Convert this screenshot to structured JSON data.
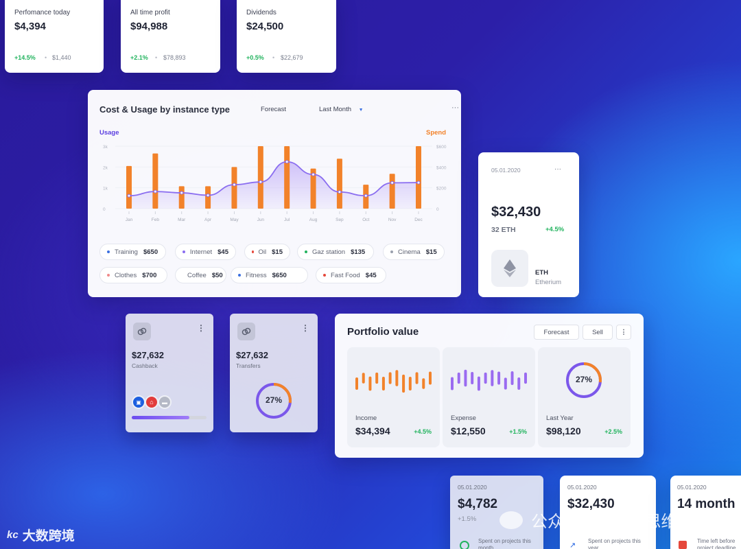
{
  "stats": [
    {
      "title": "Perfomance today",
      "value": "$4,394",
      "change": "+14.5%",
      "amount": "$1,440"
    },
    {
      "title": "All time profit",
      "value": "$94,988",
      "change": "+2.1%",
      "amount": "$78,893"
    },
    {
      "title": "Dividends",
      "value": "$24,500",
      "change": "+0.5%",
      "amount": "$22,679"
    }
  ],
  "cost_card": {
    "title": "Cost & Usage by instance type",
    "forecast": "Forecast",
    "period": "Last Month",
    "more": "···",
    "left_label": "Usage",
    "right_label": "Spend"
  },
  "chart_data": {
    "type": "bar",
    "categories": [
      "Jan",
      "Feb",
      "Mar",
      "Apr",
      "May",
      "Jun",
      "Jul",
      "Aug",
      "Sep",
      "Oct",
      "Nov",
      "Dec"
    ],
    "left_ticks": [
      "3k",
      "2k",
      "1k",
      "0"
    ],
    "right_ticks": [
      "$600",
      "$400",
      "$200",
      "0"
    ],
    "series": [
      {
        "axis": "right",
        "type": "bar",
        "values": [
          410,
          530,
          215,
          215,
          400,
          600,
          600,
          385,
          480,
          230,
          335,
          600
        ]
      },
      {
        "axis": "left",
        "type": "area",
        "values": [
          620,
          820,
          760,
          640,
          1150,
          1280,
          2250,
          1640,
          800,
          620,
          1240,
          1250
        ]
      }
    ],
    "ylim_left": [
      0,
      3000
    ],
    "ylim_right": [
      0,
      600
    ],
    "colors": {
      "bar": "#f2822a",
      "line": "#8a6df0",
      "area": "#cbbcf8"
    }
  },
  "categories_legend": [
    {
      "name": "Training",
      "amount": "$650",
      "color": "#3b6fe0"
    },
    {
      "name": "Internet",
      "amount": "$45",
      "color": "#8a6df0"
    },
    {
      "name": "Oil",
      "amount": "$15",
      "color": "#e5483b"
    },
    {
      "name": "Gaz station",
      "amount": "$135",
      "color": "#22b35e"
    },
    {
      "name": "Cinema",
      "amount": "$15",
      "color": "#9aa0ad"
    },
    {
      "name": "Clothes",
      "amount": "$700",
      "color": "#f08a8a"
    },
    {
      "name": "Coffee",
      "amount": "$50",
      "color": "#b0b4c0"
    },
    {
      "name": "Fitness",
      "amount": "$650",
      "color": "#3b6fe0"
    },
    {
      "name": "Fast Food",
      "amount": "$45",
      "color": "#e5483b"
    }
  ],
  "eth_card": {
    "date": "05.01.2020",
    "more": "···",
    "value": "$32,430",
    "sub": "32 ETH",
    "change": "+4.5%",
    "coin": "ETH",
    "coin_name": "Etherium"
  },
  "cashback_card": {
    "value": "$27,632",
    "label": "Cashback",
    "more": "⋮",
    "progress": 0.77
  },
  "transfers_card": {
    "value": "$27,632",
    "label": "Transfers",
    "more": "⋮",
    "percent": 27,
    "percent_label": "27%"
  },
  "portfolio": {
    "title": "Portfolio value",
    "forecast": "Forecast",
    "sell": "Sell",
    "more": "⋮",
    "tiles": [
      {
        "label": "Income",
        "value": "$34,394",
        "change": "+4.5%",
        "color": "#f2822a",
        "bars": [
          0.45,
          0.3,
          0.6,
          0.35,
          0.55,
          0.4,
          0.75,
          0.9,
          0.55,
          0.4,
          0.3,
          0.5
        ]
      },
      {
        "label": "Expense",
        "value": "$12,550",
        "change": "+1.5%",
        "color": "#9a6bf0",
        "bars": [
          0.5,
          0.35,
          0.8,
          0.45,
          0.6,
          0.35,
          0.75,
          0.5,
          0.4,
          0.55,
          0.45,
          0.35
        ]
      },
      {
        "label": "Last Year",
        "value": "$98,120",
        "change": "+2.5%",
        "percent": 27,
        "percent_label": "27%"
      }
    ]
  },
  "bottom_cards": [
    {
      "date": "05.01.2020",
      "value": "$4,782",
      "sub": "+1.5%",
      "desc": "Spent on projects this month"
    },
    {
      "date": "05.01.2020",
      "value": "$32,430",
      "desc": "Spent on projects this year"
    },
    {
      "date": "05.01.2020",
      "value": "14 month",
      "desc": "Time left before project deadline"
    }
  ],
  "watermarks": {
    "left": "大数跨境",
    "right": "公众号 · 设计与思维"
  }
}
